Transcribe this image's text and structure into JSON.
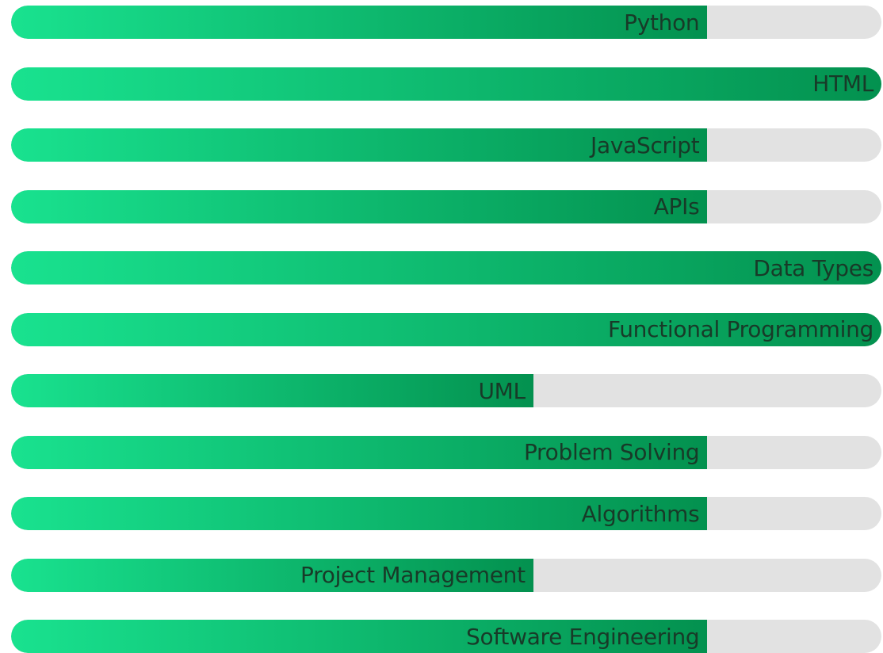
{
  "skills": [
    {
      "name": "Python",
      "level": 80
    },
    {
      "name": "HTML",
      "level": 100
    },
    {
      "name": "JavaScript",
      "level": 80
    },
    {
      "name": "APIs",
      "level": 80
    },
    {
      "name": "Data Types",
      "level": 100
    },
    {
      "name": "Functional Programming",
      "level": 100
    },
    {
      "name": "UML",
      "level": 60
    },
    {
      "name": "Problem Solving",
      "level": 80
    },
    {
      "name": "Algorithms",
      "level": 80
    },
    {
      "name": "Project Management",
      "level": 60
    },
    {
      "name": "Software Engineering",
      "level": 80
    }
  ]
}
